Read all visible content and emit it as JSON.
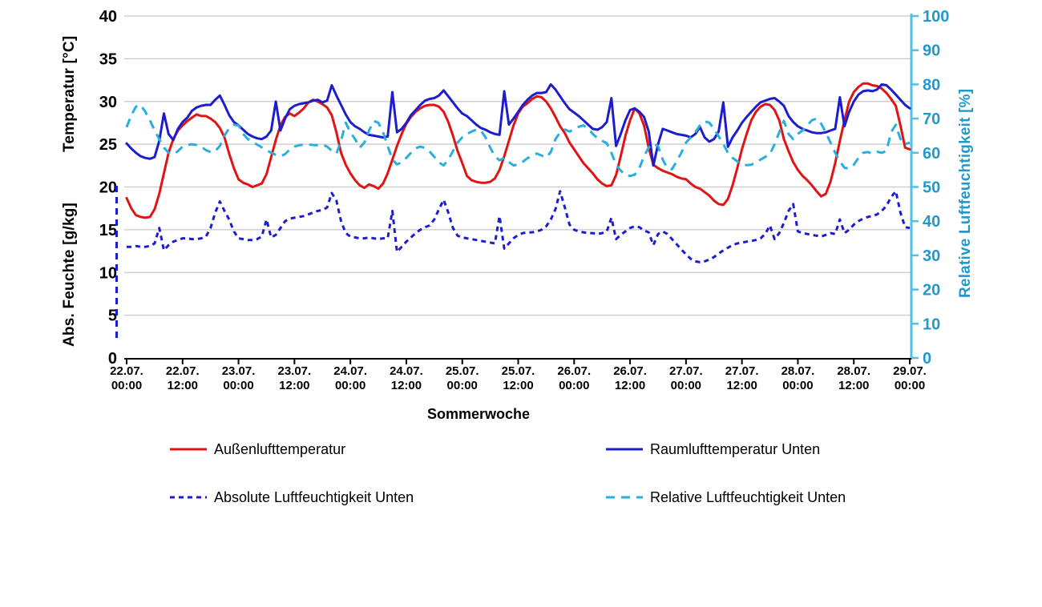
{
  "colors": {
    "outdoor_red": "#e01414",
    "room_blue": "#1d1dcd",
    "abs_blue": "#1d1dcd",
    "rel_cyan": "#29aede",
    "cyan_axis_line": "#4fc0e6",
    "cyan_label": "#2398cb",
    "grid": "#c8c8c8",
    "axis_black": "#000000"
  },
  "chart_data": {
    "type": "line",
    "x_axis": {
      "title": "Sommerwoche",
      "hours_total": 168,
      "tick_step_hours": 12,
      "tick_labels": [
        [
          "22.07.",
          "00:00"
        ],
        [
          "22.07.",
          "12:00"
        ],
        [
          "23.07.",
          "00:00"
        ],
        [
          "23.07.",
          "12:00"
        ],
        [
          "24.07.",
          "00:00"
        ],
        [
          "24.07.",
          "12:00"
        ],
        [
          "25.07.",
          "00:00"
        ],
        [
          "25.07.",
          "12:00"
        ],
        [
          "26.07.",
          "00:00"
        ],
        [
          "26.07.",
          "12:00"
        ],
        [
          "27.07.",
          "00:00"
        ],
        [
          "27.07.",
          "12:00"
        ],
        [
          "28.07.",
          "00:00"
        ],
        [
          "28.07.",
          "12:00"
        ],
        [
          "29.07.",
          "00:00"
        ]
      ]
    },
    "left_axis": {
      "title_top": "Temperatur [°C]",
      "title_bottom": "Abs. Feuchte [g/kg]",
      "min": 0,
      "max": 40,
      "step": 5
    },
    "right_axis": {
      "title": "Relative Luftfeuchtigkeit [%]",
      "min": 0,
      "max": 100,
      "step": 10
    },
    "grid": "horizontal",
    "legend_position": "bottom",
    "series": [
      {
        "name": "Außenlufttemperatur",
        "axis": "left",
        "style": "solid",
        "color": "#e01414",
        "values": [
          18.7,
          17.5,
          16.7,
          16.5,
          16.4,
          16.5,
          17.4,
          19.2,
          21.6,
          24.0,
          25.6,
          26.6,
          27.2,
          27.7,
          28.1,
          28.5,
          28.3,
          28.3,
          28.0,
          27.6,
          26.9,
          25.8,
          23.9,
          22.2,
          20.9,
          20.5,
          20.3,
          20.0,
          20.2,
          20.4,
          21.5,
          23.5,
          25.5,
          27.2,
          28.2,
          28.6,
          28.3,
          28.7,
          29.2,
          29.9,
          30.2,
          30.0,
          29.7,
          29.3,
          28.4,
          26.4,
          24.0,
          22.6,
          21.6,
          20.8,
          20.2,
          19.9,
          20.3,
          20.1,
          19.8,
          20.4,
          21.6,
          23.2,
          24.8,
          26.2,
          27.4,
          28.2,
          28.8,
          29.2,
          29.5,
          29.6,
          29.6,
          29.4,
          28.8,
          27.6,
          26.0,
          24.2,
          22.8,
          21.3,
          20.8,
          20.6,
          20.5,
          20.5,
          20.6,
          21.0,
          22.0,
          23.6,
          25.4,
          27.2,
          28.6,
          29.4,
          29.8,
          30.3,
          30.6,
          30.5,
          30.0,
          29.2,
          28.2,
          27.1,
          26.3,
          25.2,
          24.4,
          23.6,
          22.8,
          22.2,
          21.6,
          20.9,
          20.4,
          20.1,
          20.2,
          21.4,
          23.6,
          26.0,
          27.8,
          29.2,
          28.6,
          27.2,
          24.6,
          22.6,
          22.2,
          21.9,
          21.7,
          21.5,
          21.2,
          21.0,
          20.9,
          20.4,
          20.0,
          19.8,
          19.4,
          19.0,
          18.4,
          18.0,
          17.9,
          18.6,
          20.2,
          22.2,
          24.4,
          26.2,
          27.8,
          28.8,
          29.4,
          29.7,
          29.6,
          29.0,
          27.8,
          25.6,
          24.2,
          22.9,
          22.0,
          21.3,
          20.8,
          20.2,
          19.5,
          18.9,
          19.2,
          20.6,
          22.8,
          25.4,
          27.8,
          30.0,
          31.1,
          31.7,
          32.1,
          32.1,
          31.9,
          31.8,
          31.5,
          31.0,
          30.3,
          29.5,
          27.2,
          24.6,
          24.4
        ]
      },
      {
        "name": "Raumlufttemperatur Unten",
        "axis": "left",
        "style": "solid",
        "color": "#1d1dcd",
        "values": [
          25.1,
          24.5,
          24.0,
          23.6,
          23.4,
          23.3,
          23.5,
          25.4,
          28.6,
          26.2,
          25.5,
          26.8,
          27.6,
          28.1,
          28.9,
          29.3,
          29.5,
          29.6,
          29.6,
          30.2,
          30.7,
          29.6,
          28.4,
          27.6,
          27.2,
          26.7,
          26.2,
          25.9,
          25.7,
          25.6,
          25.9,
          26.6,
          30.0,
          26.6,
          28.0,
          29.1,
          29.5,
          29.7,
          29.8,
          29.9,
          30.1,
          30.2,
          29.9,
          30.1,
          31.9,
          30.7,
          29.6,
          28.5,
          27.6,
          27.1,
          26.8,
          26.4,
          26.1,
          26.0,
          25.9,
          25.8,
          25.9,
          31.1,
          26.4,
          26.8,
          27.5,
          28.4,
          29.0,
          29.6,
          30.1,
          30.3,
          30.4,
          30.7,
          31.3,
          30.6,
          29.9,
          29.2,
          28.6,
          28.3,
          27.8,
          27.3,
          26.9,
          26.7,
          26.4,
          26.2,
          26.1,
          31.2,
          27.3,
          28.0,
          28.8,
          29.6,
          30.2,
          30.7,
          31.0,
          31.0,
          31.1,
          32.0,
          31.4,
          30.6,
          29.8,
          29.1,
          28.7,
          28.3,
          27.8,
          27.3,
          26.8,
          26.7,
          27.0,
          27.6,
          30.4,
          24.8,
          26.2,
          27.8,
          29.0,
          29.2,
          28.8,
          28.2,
          26.5,
          22.5,
          25.0,
          26.8,
          26.6,
          26.4,
          26.2,
          26.1,
          26.0,
          25.8,
          26.2,
          27.0,
          25.8,
          25.3,
          25.6,
          26.5,
          29.9,
          24.7,
          25.8,
          26.6,
          27.5,
          28.2,
          28.8,
          29.4,
          29.9,
          30.1,
          30.3,
          30.4,
          30.0,
          29.5,
          28.3,
          27.6,
          27.1,
          26.8,
          26.6,
          26.4,
          26.3,
          26.3,
          26.4,
          26.6,
          26.8,
          30.5,
          27.1,
          28.8,
          30.0,
          30.8,
          31.2,
          31.3,
          31.2,
          31.4,
          32.0,
          31.9,
          31.4,
          30.8,
          30.2,
          29.6,
          29.2
        ]
      },
      {
        "name": "Absolute Luftfeuchtigkeit Unten",
        "axis": "left",
        "style": "dash-short",
        "color": "#1d1dcd",
        "values": [
          13.0,
          13.0,
          13.1,
          13.0,
          13.0,
          13.1,
          13.4,
          15.2,
          12.6,
          13.2,
          13.6,
          13.8,
          14.0,
          14.0,
          13.9,
          13.9,
          14.0,
          14.2,
          15.2,
          17.0,
          18.3,
          17.2,
          16.2,
          14.8,
          14.0,
          13.9,
          13.8,
          13.8,
          13.9,
          14.2,
          16.2,
          14.1,
          14.4,
          15.2,
          16.0,
          16.3,
          16.4,
          16.5,
          16.6,
          16.8,
          17.0,
          17.2,
          17.3,
          17.6,
          19.3,
          18.4,
          16.0,
          14.6,
          14.2,
          14.1,
          14.0,
          14.0,
          14.1,
          14.0,
          13.9,
          14.0,
          14.0,
          17.2,
          12.4,
          13.0,
          13.6,
          14.1,
          14.6,
          15.0,
          15.3,
          15.5,
          16.2,
          17.4,
          18.5,
          17.0,
          15.2,
          14.3,
          14.1,
          14.0,
          13.9,
          13.8,
          13.7,
          13.6,
          13.5,
          13.4,
          16.6,
          12.8,
          13.4,
          14.0,
          14.4,
          14.6,
          14.7,
          14.7,
          14.8,
          15.0,
          15.4,
          16.2,
          17.4,
          19.5,
          17.6,
          15.6,
          15.0,
          14.8,
          14.7,
          14.6,
          14.6,
          14.5,
          14.6,
          14.8,
          16.4,
          13.9,
          14.4,
          14.8,
          15.2,
          15.4,
          15.3,
          14.9,
          14.7,
          13.2,
          14.5,
          14.8,
          14.5,
          13.9,
          13.3,
          12.7,
          12.1,
          11.6,
          11.3,
          11.2,
          11.3,
          11.5,
          11.8,
          12.2,
          12.6,
          12.9,
          13.2,
          13.4,
          13.5,
          13.6,
          13.7,
          13.8,
          14.0,
          14.5,
          15.5,
          13.9,
          14.6,
          15.8,
          17.2,
          18.0,
          14.8,
          14.6,
          14.5,
          14.4,
          14.3,
          14.2,
          14.4,
          14.6,
          14.5,
          16.2,
          14.6,
          15.0,
          15.6,
          16.0,
          16.3,
          16.5,
          16.6,
          16.8,
          17.2,
          17.8,
          18.8,
          19.5,
          17.0,
          15.3,
          15.2
        ]
      },
      {
        "name": "Relative Luftfeuchtigkeit Unten",
        "axis": "right",
        "style": "dash-long",
        "color": "#29aede",
        "values": [
          67.5,
          71.0,
          73.5,
          74.0,
          72.0,
          69.5,
          66.5,
          64.0,
          61.5,
          60.0,
          59.5,
          60.5,
          61.8,
          62.3,
          62.5,
          62.3,
          61.8,
          60.8,
          60.2,
          60.5,
          62.0,
          65.0,
          67.2,
          68.2,
          68.0,
          65.5,
          64.0,
          63.2,
          62.4,
          61.6,
          60.8,
          60.0,
          59.4,
          59.0,
          59.6,
          61.0,
          61.8,
          62.2,
          62.4,
          62.4,
          62.3,
          62.2,
          62.4,
          61.8,
          60.6,
          59.8,
          63.5,
          68.8,
          66.0,
          64.0,
          61.5,
          63.0,
          66.5,
          69.3,
          68.8,
          66.0,
          62.0,
          58.0,
          56.6,
          57.2,
          58.5,
          60.0,
          61.3,
          61.8,
          61.4,
          60.4,
          58.8,
          57.2,
          56.3,
          58.0,
          60.5,
          63.0,
          64.5,
          65.5,
          66.2,
          66.8,
          66.5,
          64.5,
          61.5,
          59.0,
          57.8,
          58.5,
          57.3,
          56.3,
          56.6,
          57.4,
          58.4,
          59.2,
          59.8,
          59.2,
          58.6,
          60.2,
          64.0,
          66.0,
          66.8,
          66.2,
          66.8,
          67.6,
          68.0,
          67.2,
          65.5,
          64.3,
          63.5,
          62.8,
          60.0,
          56.5,
          54.8,
          53.5,
          53.2,
          53.6,
          55.5,
          59.0,
          61.5,
          62.7,
          62.0,
          58.0,
          55.5,
          55.2,
          57.5,
          60.0,
          63.0,
          64.5,
          66.0,
          68.0,
          69.2,
          68.8,
          67.0,
          64.8,
          62.5,
          60.0,
          58.5,
          57.5,
          56.6,
          56.4,
          56.5,
          57.2,
          58.0,
          58.8,
          59.6,
          62.5,
          66.0,
          69.3,
          65.5,
          64.0,
          65.5,
          66.5,
          68.0,
          69.5,
          70.0,
          68.5,
          66.0,
          63.0,
          60.0,
          57.5,
          55.6,
          55.4,
          56.5,
          58.5,
          60.0,
          60.2,
          59.8,
          60.3,
          60.0,
          60.5,
          66.0,
          68.2,
          64.0,
          62.5,
          63.0
        ]
      }
    ]
  }
}
